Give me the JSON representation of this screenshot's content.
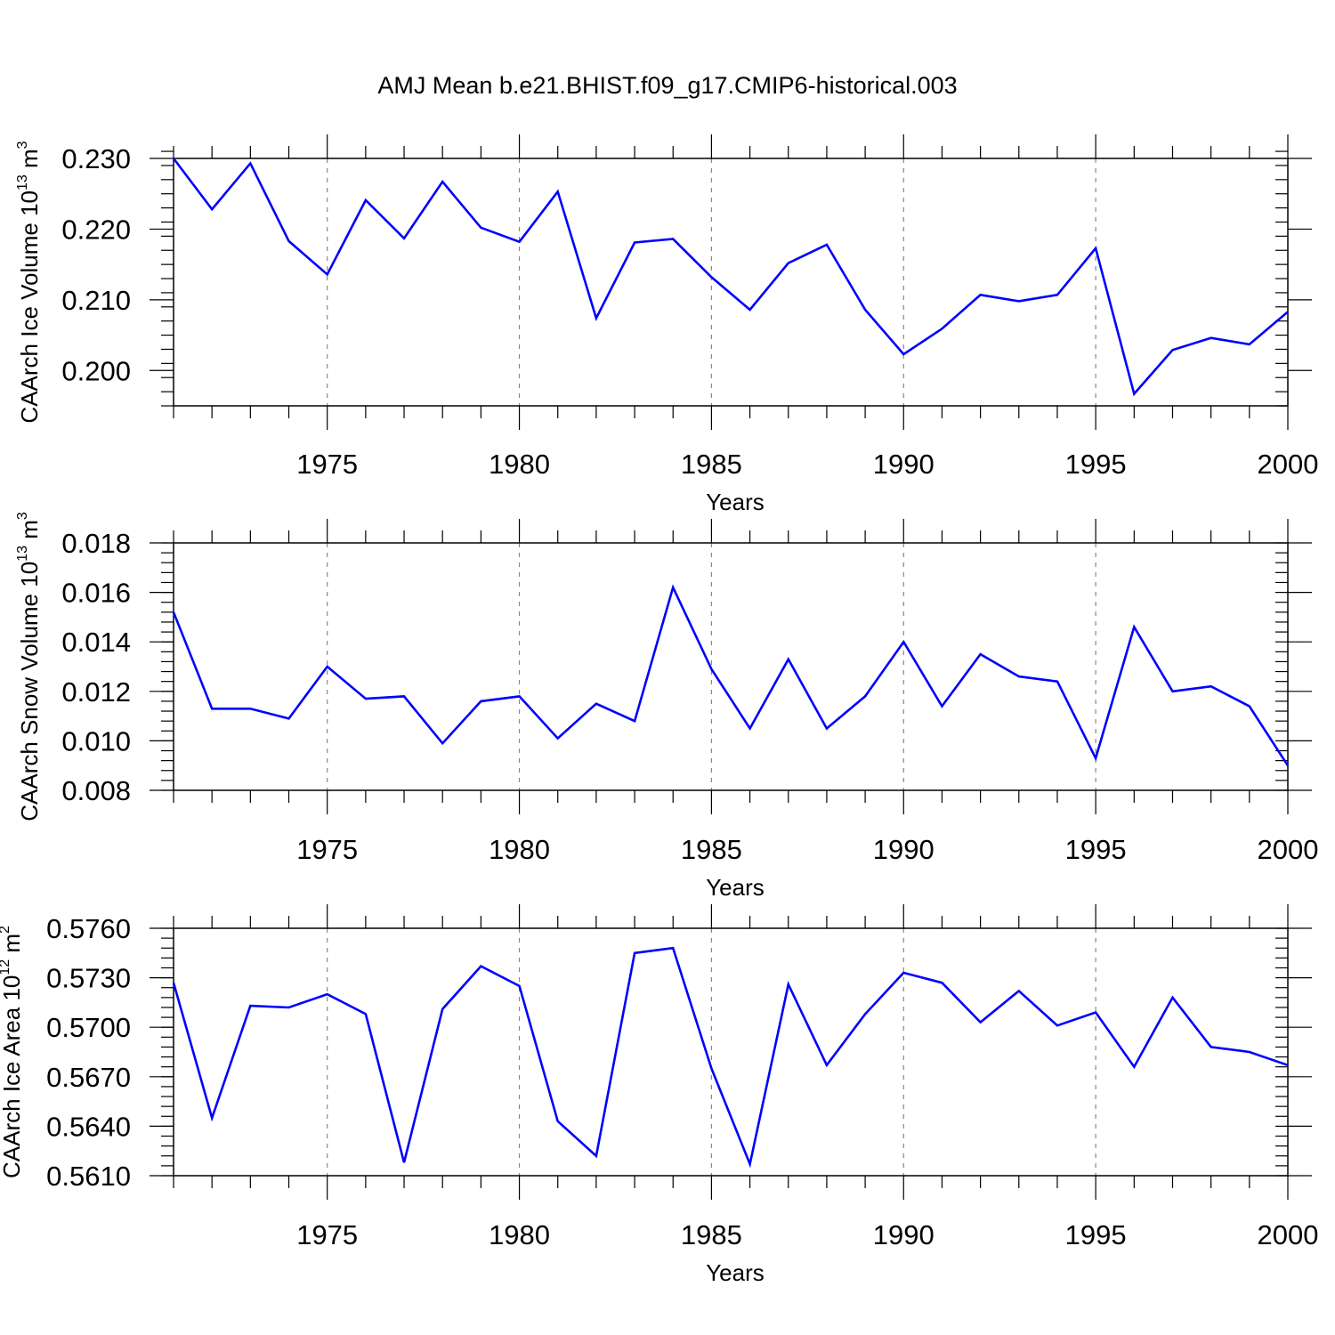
{
  "chart_data": {
    "title": "AMJ Mean b.e21.BHIST.f09_g17.CMIP6-historical.003",
    "type": "line",
    "panels": [
      {
        "type": "line",
        "xlabel": "Years",
        "ylabel_main": "CAArch Ice Volume 10",
        "ylabel_exp": "13",
        "ylabel_unit": " m",
        "ylabel_unit_exp": "3",
        "xlim": [
          1971,
          2000
        ],
        "ylim": [
          0.195,
          0.23
        ],
        "xticks": [
          1975,
          1980,
          1985,
          1990,
          1995,
          2000
        ],
        "yticks": [
          0.2,
          0.21,
          0.22,
          0.23
        ],
        "ytick_labels": [
          "0.200",
          "0.210",
          "0.220",
          "0.230"
        ],
        "yminor_step": 0.002,
        "grid": "dashed vertical lines at major x ticks",
        "color": "#0000ff",
        "x": [
          1971,
          1972,
          1973,
          1974,
          1975,
          1976,
          1977,
          1978,
          1979,
          1980,
          1981,
          1982,
          1983,
          1984,
          1985,
          1986,
          1987,
          1988,
          1989,
          1990,
          1991,
          1992,
          1993,
          1994,
          1995,
          1996,
          1997,
          1998,
          1999,
          2000
        ],
        "values": [
          0.23,
          0.2228,
          0.2293,
          0.2183,
          0.2136,
          0.2241,
          0.2187,
          0.2267,
          0.2202,
          0.2182,
          0.2253,
          0.2074,
          0.2181,
          0.2186,
          0.2132,
          0.2086,
          0.2152,
          0.2178,
          0.2086,
          0.2023,
          0.2059,
          0.2107,
          0.2098,
          0.2107,
          0.2173,
          0.1967,
          0.2029,
          0.2046,
          0.2037,
          0.2083
        ]
      },
      {
        "type": "line",
        "xlabel": "Years",
        "ylabel_main": "CAArch Snow Volume 10",
        "ylabel_exp": "13",
        "ylabel_unit": " m",
        "ylabel_unit_exp": "3",
        "xlim": [
          1971,
          2000
        ],
        "ylim": [
          0.008,
          0.018
        ],
        "xticks": [
          1975,
          1980,
          1985,
          1990,
          1995,
          2000
        ],
        "yticks": [
          0.008,
          0.01,
          0.012,
          0.014,
          0.016,
          0.018
        ],
        "ytick_labels": [
          "0.008",
          "0.010",
          "0.012",
          "0.014",
          "0.016",
          "0.018"
        ],
        "yminor_step": 0.0004,
        "grid": "dashed vertical lines at major x ticks",
        "color": "#0000ff",
        "x": [
          1971,
          1972,
          1973,
          1974,
          1975,
          1976,
          1977,
          1978,
          1979,
          1980,
          1981,
          1982,
          1983,
          1984,
          1985,
          1986,
          1987,
          1988,
          1989,
          1990,
          1991,
          1992,
          1993,
          1994,
          1995,
          1996,
          1997,
          1998,
          1999,
          2000
        ],
        "values": [
          0.0152,
          0.0113,
          0.0113,
          0.0109,
          0.013,
          0.0117,
          0.0118,
          0.0099,
          0.0116,
          0.0118,
          0.0101,
          0.0115,
          0.0108,
          0.0162,
          0.0129,
          0.0105,
          0.0133,
          0.0105,
          0.0118,
          0.014,
          0.0114,
          0.0135,
          0.0126,
          0.0124,
          0.0093,
          0.0146,
          0.012,
          0.0122,
          0.0114,
          0.009
        ]
      },
      {
        "type": "line",
        "xlabel": "Years",
        "ylabel_main": "CAArch Ice Area 10",
        "ylabel_exp": "12",
        "ylabel_unit": " m",
        "ylabel_unit_exp": "2",
        "xlim": [
          1971,
          2000
        ],
        "ylim": [
          0.561,
          0.576
        ],
        "xticks": [
          1975,
          1980,
          1985,
          1990,
          1995,
          2000
        ],
        "yticks": [
          0.561,
          0.564,
          0.567,
          0.57,
          0.573,
          0.576
        ],
        "ytick_labels": [
          "0.5610",
          "0.5640",
          "0.5670",
          "0.5700",
          "0.5730",
          "0.5760"
        ],
        "yminor_step": 0.0006,
        "grid": "dashed vertical lines at major x ticks",
        "color": "#0000ff",
        "x": [
          1971,
          1972,
          1973,
          1974,
          1975,
          1976,
          1977,
          1978,
          1979,
          1980,
          1981,
          1982,
          1983,
          1984,
          1985,
          1986,
          1987,
          1988,
          1989,
          1990,
          1991,
          1992,
          1993,
          1994,
          1995,
          1996,
          1997,
          1998,
          1999,
          2000
        ],
        "values": [
          0.5727,
          0.5645,
          0.5713,
          0.5712,
          0.572,
          0.5708,
          0.5618,
          0.5711,
          0.5737,
          0.5725,
          0.5643,
          0.5622,
          0.5745,
          0.5748,
          0.5675,
          0.5617,
          0.5726,
          0.5677,
          0.5708,
          0.5733,
          0.5727,
          0.5703,
          0.5722,
          0.5701,
          0.5709,
          0.5676,
          0.5718,
          0.5688,
          0.5685,
          0.5677
        ]
      }
    ]
  }
}
